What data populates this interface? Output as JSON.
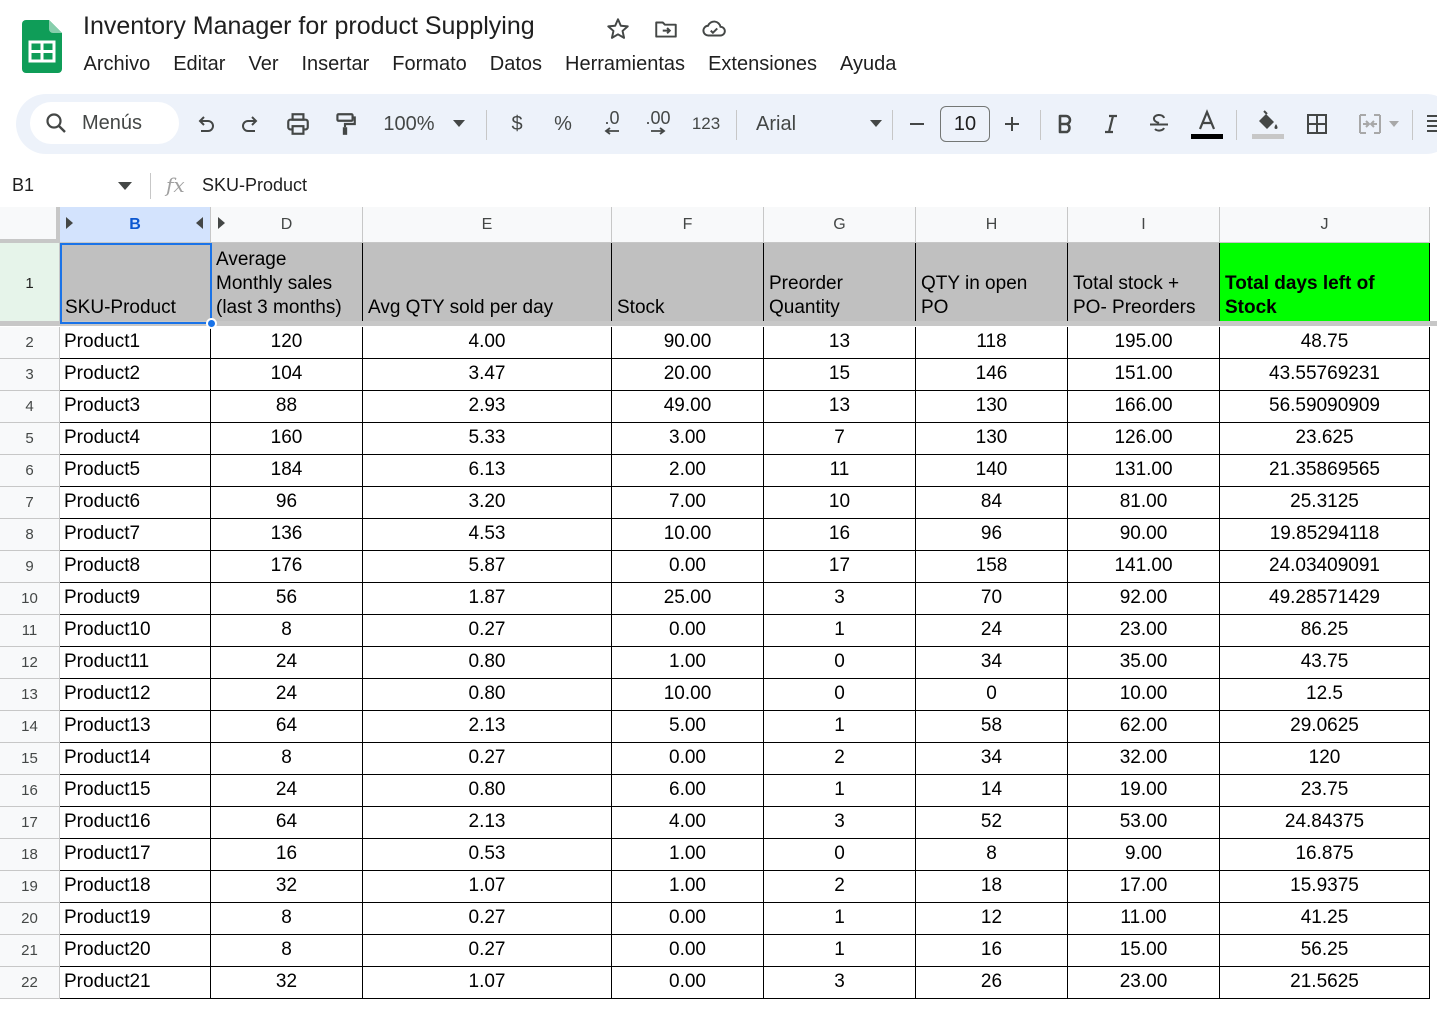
{
  "app": {
    "title": "Inventory Manager for product Supplying",
    "menu": [
      "Archivo",
      "Editar",
      "Ver",
      "Insertar",
      "Formato",
      "Datos",
      "Herramientas",
      "Extensiones",
      "Ayuda"
    ]
  },
  "toolbar": {
    "search_label": "Menús",
    "zoom": "100%",
    "currency": "$",
    "percent": "%",
    "dec_decrease": ".0",
    "dec_increase": ".00",
    "number_format": "123",
    "font": "Arial",
    "font_size": "10"
  },
  "formula_bar": {
    "cell_ref": "B1",
    "fx": "fx",
    "content": "SKU-Product"
  },
  "columns": [
    "B",
    "D",
    "E",
    "F",
    "G",
    "H",
    "I",
    "J"
  ],
  "header_row": {
    "row_number": "1",
    "cells": [
      "SKU-Product",
      "Average\nMonthly sales\n(last 3 months)",
      "Avg QTY sold per day",
      "Stock",
      "Preorder\nQuantity",
      "QTY in open\nPO",
      "Total stock +\nPO- Preorders",
      "Total days left of\nStock"
    ]
  },
  "rows": [
    {
      "n": "2",
      "cells": [
        "Product1",
        "120",
        "4.00",
        "90.00",
        "13",
        "118",
        "195.00",
        "48.75"
      ]
    },
    {
      "n": "3",
      "cells": [
        "Product2",
        "104",
        "3.47",
        "20.00",
        "15",
        "146",
        "151.00",
        "43.55769231"
      ]
    },
    {
      "n": "4",
      "cells": [
        "Product3",
        "88",
        "2.93",
        "49.00",
        "13",
        "130",
        "166.00",
        "56.59090909"
      ]
    },
    {
      "n": "5",
      "cells": [
        "Product4",
        "160",
        "5.33",
        "3.00",
        "7",
        "130",
        "126.00",
        "23.625"
      ]
    },
    {
      "n": "6",
      "cells": [
        "Product5",
        "184",
        "6.13",
        "2.00",
        "11",
        "140",
        "131.00",
        "21.35869565"
      ]
    },
    {
      "n": "7",
      "cells": [
        "Product6",
        "96",
        "3.20",
        "7.00",
        "10",
        "84",
        "81.00",
        "25.3125"
      ]
    },
    {
      "n": "8",
      "cells": [
        "Product7",
        "136",
        "4.53",
        "10.00",
        "16",
        "96",
        "90.00",
        "19.85294118"
      ]
    },
    {
      "n": "9",
      "cells": [
        "Product8",
        "176",
        "5.87",
        "0.00",
        "17",
        "158",
        "141.00",
        "24.03409091"
      ]
    },
    {
      "n": "10",
      "cells": [
        "Product9",
        "56",
        "1.87",
        "25.00",
        "3",
        "70",
        "92.00",
        "49.28571429"
      ]
    },
    {
      "n": "11",
      "cells": [
        "Product10",
        "8",
        "0.27",
        "0.00",
        "1",
        "24",
        "23.00",
        "86.25"
      ]
    },
    {
      "n": "12",
      "cells": [
        "Product11",
        "24",
        "0.80",
        "1.00",
        "0",
        "34",
        "35.00",
        "43.75"
      ]
    },
    {
      "n": "13",
      "cells": [
        "Product12",
        "24",
        "0.80",
        "10.00",
        "0",
        "0",
        "10.00",
        "12.5"
      ]
    },
    {
      "n": "14",
      "cells": [
        "Product13",
        "64",
        "2.13",
        "5.00",
        "1",
        "58",
        "62.00",
        "29.0625"
      ]
    },
    {
      "n": "15",
      "cells": [
        "Product14",
        "8",
        "0.27",
        "0.00",
        "2",
        "34",
        "32.00",
        "120"
      ]
    },
    {
      "n": "16",
      "cells": [
        "Product15",
        "24",
        "0.80",
        "6.00",
        "1",
        "14",
        "19.00",
        "23.75"
      ]
    },
    {
      "n": "17",
      "cells": [
        "Product16",
        "64",
        "2.13",
        "4.00",
        "3",
        "52",
        "53.00",
        "24.84375"
      ]
    },
    {
      "n": "18",
      "cells": [
        "Product17",
        "16",
        "0.53",
        "1.00",
        "0",
        "8",
        "9.00",
        "16.875"
      ]
    },
    {
      "n": "19",
      "cells": [
        "Product18",
        "32",
        "1.07",
        "1.00",
        "2",
        "18",
        "17.00",
        "15.9375"
      ]
    },
    {
      "n": "20",
      "cells": [
        "Product19",
        "8",
        "0.27",
        "0.00",
        "1",
        "12",
        "11.00",
        "41.25"
      ]
    },
    {
      "n": "21",
      "cells": [
        "Product20",
        "8",
        "0.27",
        "0.00",
        "1",
        "16",
        "15.00",
        "56.25"
      ]
    },
    {
      "n": "22",
      "cells": [
        "Product21",
        "32",
        "1.07",
        "0.00",
        "3",
        "26",
        "23.00",
        "21.5625"
      ]
    }
  ],
  "colors": {
    "header_gray": "#c0c0c0",
    "header_green": "#00ff00",
    "selection_blue": "#1a73e8",
    "toolbar_bg": "#edf2fa"
  }
}
